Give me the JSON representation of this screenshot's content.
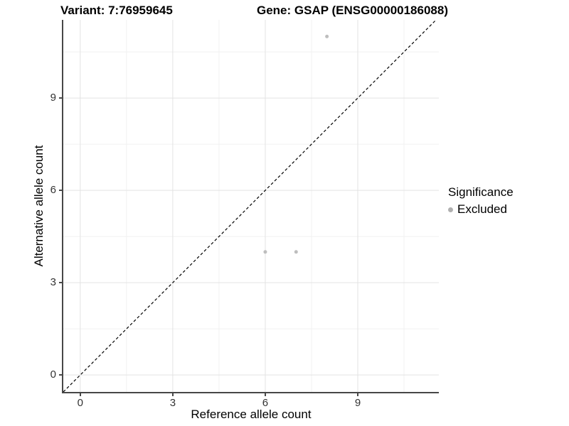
{
  "titles": {
    "variant": "Variant: 7:76959645",
    "gene": "Gene: GSAP (ENSG00000186088)"
  },
  "chart_data": {
    "type": "scatter",
    "xlabel": "Reference allele count",
    "ylabel": "Alternative allele count",
    "x_ticks": [
      0,
      3,
      6,
      9
    ],
    "y_ticks": [
      0,
      3,
      6,
      9
    ],
    "x_minor_ticks": [
      1.5,
      4.5,
      7.5,
      10.5
    ],
    "y_minor_ticks": [
      1.5,
      4.5,
      7.5,
      10.5
    ],
    "xlim": [
      -0.55,
      11.63
    ],
    "ylim": [
      -0.55,
      11.54
    ],
    "grid": true,
    "reference_line": {
      "equation": "y = x",
      "style": "dashed",
      "color": "#000000"
    },
    "series": [
      {
        "name": "Excluded",
        "color": "#bebebe",
        "point_radius": 2.5,
        "points": [
          {
            "x": 6,
            "y": 4
          },
          {
            "x": 7,
            "y": 4
          },
          {
            "x": 8,
            "y": 11
          }
        ]
      }
    ],
    "legend": {
      "title": "Significance",
      "position": "right",
      "items": [
        {
          "label": "Excluded",
          "color": "#b0b0b0"
        }
      ]
    },
    "colors": {
      "grid_major": "#e3e3e3",
      "grid_minor": "#f1f1f1",
      "axis_line": "#474747",
      "tick_text": "#333333",
      "background": "#ffffff"
    }
  }
}
